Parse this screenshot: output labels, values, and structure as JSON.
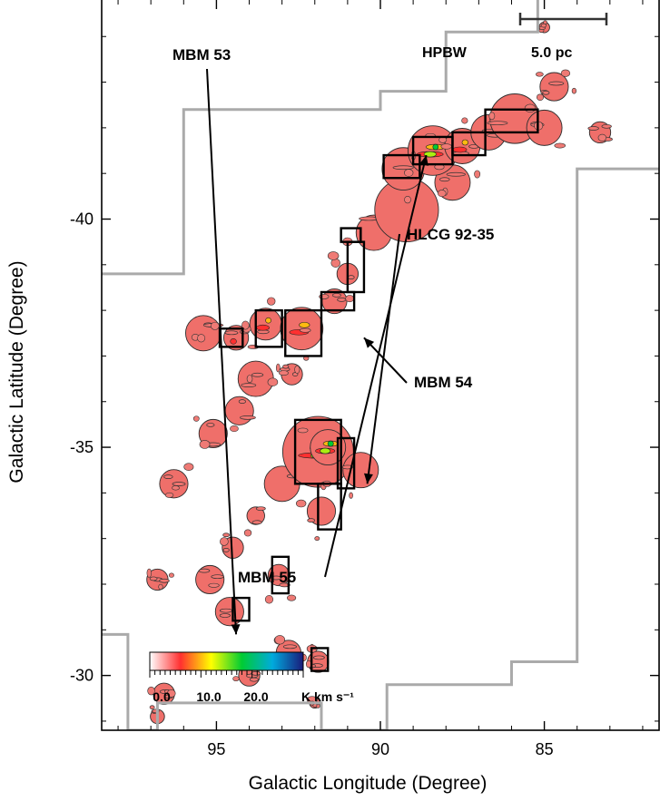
{
  "chart_data": {
    "type": "heatmap",
    "xlabel": "Galactic Longitude (Degree)",
    "ylabel": "Galactic Latitude (Degree)",
    "xlim": [
      98.5,
      81.5
    ],
    "ylim": [
      -44.8,
      -28.8
    ],
    "x_ticks": [
      95,
      90,
      85
    ],
    "x_tick_labels": [
      "95",
      "90",
      "85"
    ],
    "y_ticks": [
      -30,
      -35,
      -40
    ],
    "y_tick_labels": [
      "-30",
      "-35",
      "-40"
    ],
    "annotations": [
      {
        "text": "MBM 53",
        "target_l": 94.4,
        "target_b": -30.9
      },
      {
        "text": "HLCG 92-35",
        "target_l": 90.4,
        "target_b": -34.2
      },
      {
        "text": "MBM 54",
        "target_l": 90.5,
        "target_b": -37.4
      },
      {
        "text": "MBM 55",
        "target_l": 88.6,
        "target_b": -41.4
      }
    ],
    "hpbw_label": "HPBW",
    "scalebar_label": "5.0 pc",
    "colorbar": {
      "min": 0.0,
      "max": 30.0,
      "tick_labels": [
        "0.0",
        "10.0",
        "20.0"
      ],
      "tick_values": [
        0,
        10,
        20
      ],
      "unit": "K km s⁻¹",
      "colors": [
        "#ffffff",
        "#ff3030",
        "#ffff00",
        "#00cc33",
        "#00aadd",
        "#1a1a7a"
      ]
    },
    "survey_boundary": [
      [
        98.5,
        -30.9
      ],
      [
        97.7,
        -30.9
      ],
      [
        97.7,
        -28.8
      ],
      [
        96.8,
        -28.8
      ],
      [
        96.8,
        -29.4
      ],
      [
        91.8,
        -29.4
      ],
      [
        91.8,
        -28.8
      ],
      [
        89.8,
        -28.8
      ],
      [
        89.8,
        -29.8
      ],
      [
        86.0,
        -29.8
      ],
      [
        86.0,
        -30.3
      ],
      [
        84.0,
        -30.3
      ],
      [
        84.0,
        -41.1
      ],
      [
        81.5,
        -41.1
      ]
    ],
    "survey_boundary_2": [
      [
        98.5,
        -38.8
      ],
      [
        96.0,
        -38.8
      ],
      [
        96.0,
        -42.4
      ],
      [
        90.0,
        -42.4
      ],
      [
        90.0,
        -42.8
      ],
      [
        88.0,
        -42.8
      ],
      [
        88.0,
        -43.0
      ],
      [
        88.0,
        -44.1
      ],
      [
        85.2,
        -44.1
      ],
      [
        85.2,
        -44.8
      ]
    ],
    "emission_regions": [
      {
        "l": 96.8,
        "b": -29.1,
        "rl": 0.2,
        "rb": 0.3,
        "peak": 2
      },
      {
        "l": 96.6,
        "b": -29.6,
        "rl": 0.3,
        "rb": 0.15,
        "peak": 2
      },
      {
        "l": 94.0,
        "b": -30.0,
        "rl": 0.3,
        "rb": 0.15,
        "peak": 1
      },
      {
        "l": 92.8,
        "b": -30.5,
        "rl": 0.35,
        "rb": 0.2,
        "peak": 2
      },
      {
        "l": 91.9,
        "b": -30.3,
        "rl": 0.3,
        "rb": 0.25,
        "peak": 5
      },
      {
        "l": 92.0,
        "b": -29.4,
        "rl": 0.15,
        "rb": 0.1,
        "peak": 1
      },
      {
        "l": 94.6,
        "b": -31.4,
        "rl": 0.4,
        "rb": 0.4,
        "peak": 5
      },
      {
        "l": 95.2,
        "b": -32.1,
        "rl": 0.4,
        "rb": 0.3,
        "peak": 2
      },
      {
        "l": 96.8,
        "b": -32.1,
        "rl": 0.3,
        "rb": 0.15,
        "peak": 1
      },
      {
        "l": 93.1,
        "b": -32.2,
        "rl": 0.3,
        "rb": 0.35,
        "peak": 4
      },
      {
        "l": 94.5,
        "b": -32.8,
        "rl": 0.3,
        "rb": 0.35,
        "peak": 2
      },
      {
        "l": 93.8,
        "b": -33.5,
        "rl": 0.25,
        "rb": 0.25,
        "peak": 2
      },
      {
        "l": 93.0,
        "b": -34.2,
        "rl": 0.5,
        "rb": 0.4,
        "peak": 2
      },
      {
        "l": 91.8,
        "b": -33.6,
        "rl": 0.4,
        "rb": 0.5,
        "peak": 4
      },
      {
        "l": 91.9,
        "b": -34.9,
        "rl": 1.0,
        "rb": 0.9,
        "peak": 14
      },
      {
        "l": 91.6,
        "b": -35.0,
        "rl": 0.5,
        "rb": 0.6,
        "peak": 20
      },
      {
        "l": 90.6,
        "b": -34.5,
        "rl": 0.5,
        "rb": 0.35,
        "peak": 2
      },
      {
        "l": 96.3,
        "b": -34.2,
        "rl": 0.4,
        "rb": 0.25,
        "peak": 2
      },
      {
        "l": 95.1,
        "b": -35.3,
        "rl": 0.4,
        "rb": 0.3,
        "peak": 2
      },
      {
        "l": 94.3,
        "b": -35.8,
        "rl": 0.4,
        "rb": 0.3,
        "peak": 2
      },
      {
        "l": 93.8,
        "b": -36.5,
        "rl": 0.5,
        "rb": 0.3,
        "peak": 2
      },
      {
        "l": 92.7,
        "b": -36.6,
        "rl": 0.3,
        "rb": 0.25,
        "peak": 2
      },
      {
        "l": 95.4,
        "b": -37.5,
        "rl": 0.5,
        "rb": 0.3,
        "peak": 2
      },
      {
        "l": 94.4,
        "b": -37.4,
        "rl": 0.35,
        "rb": 0.3,
        "peak": 6
      },
      {
        "l": 93.5,
        "b": -37.7,
        "rl": 0.45,
        "rb": 0.4,
        "peak": 10
      },
      {
        "l": 92.4,
        "b": -37.6,
        "rl": 0.6,
        "rb": 0.6,
        "peak": 12
      },
      {
        "l": 91.4,
        "b": -38.2,
        "rl": 0.35,
        "rb": 0.35,
        "peak": 4
      },
      {
        "l": 91.0,
        "b": -38.8,
        "rl": 0.3,
        "rb": 0.6,
        "peak": 5
      },
      {
        "l": 90.2,
        "b": -39.7,
        "rl": 0.5,
        "rb": 0.4,
        "peak": 2
      },
      {
        "l": 89.2,
        "b": -40.2,
        "rl": 0.9,
        "rb": 0.35,
        "peak": 2
      },
      {
        "l": 87.8,
        "b": -40.8,
        "rl": 0.5,
        "rb": 0.3,
        "peak": 2
      },
      {
        "l": 89.3,
        "b": -41.1,
        "rl": 0.6,
        "rb": 0.3,
        "peak": 5
      },
      {
        "l": 88.4,
        "b": -41.5,
        "rl": 0.7,
        "rb": 0.35,
        "peak": 18
      },
      {
        "l": 87.5,
        "b": -41.6,
        "rl": 0.5,
        "rb": 0.3,
        "peak": 10
      },
      {
        "l": 86.7,
        "b": -41.9,
        "rl": 0.5,
        "rb": 0.3,
        "peak": 3
      },
      {
        "l": 85.9,
        "b": -42.2,
        "rl": 0.7,
        "rb": 0.3,
        "peak": 2
      },
      {
        "l": 85.0,
        "b": -42.0,
        "rl": 0.5,
        "rb": 0.25,
        "peak": 2
      },
      {
        "l": 83.3,
        "b": -41.9,
        "rl": 0.3,
        "rb": 0.2,
        "peak": 1
      },
      {
        "l": 84.7,
        "b": -42.9,
        "rl": 0.4,
        "rb": 0.2,
        "peak": 1
      },
      {
        "l": 85.0,
        "b": -44.2,
        "rl": 0.15,
        "rb": 0.15,
        "peak": 2
      }
    ],
    "outlined_regions": [
      {
        "l0": 94.5,
        "l1": 94.0,
        "b0": -31.2,
        "b1": -31.7
      },
      {
        "l0": 92.1,
        "l1": 91.6,
        "b0": -30.1,
        "b1": -30.6
      },
      {
        "l0": 93.3,
        "l1": 92.8,
        "b0": -31.8,
        "b1": -32.6
      },
      {
        "l0": 91.9,
        "l1": 91.2,
        "b0": -33.2,
        "b1": -34.2
      },
      {
        "l0": 92.6,
        "l1": 91.2,
        "b0": -34.2,
        "b1": -35.6
      },
      {
        "l0": 91.3,
        "l1": 90.8,
        "b0": -34.1,
        "b1": -35.2
      },
      {
        "l0": 94.9,
        "l1": 94.2,
        "b0": -37.2,
        "b1": -37.6
      },
      {
        "l0": 93.8,
        "l1": 93.0,
        "b0": -37.2,
        "b1": -38.0
      },
      {
        "l0": 92.9,
        "l1": 91.8,
        "b0": -37.0,
        "b1": -38.0
      },
      {
        "l0": 91.8,
        "l1": 90.8,
        "b0": -38.0,
        "b1": -38.4
      },
      {
        "l0": 91.0,
        "l1": 90.5,
        "b0": -38.4,
        "b1": -39.5
      },
      {
        "l0": 91.2,
        "l1": 90.6,
        "b0": -39.5,
        "b1": -39.8
      },
      {
        "l0": 89.9,
        "l1": 88.8,
        "b0": -40.9,
        "b1": -41.4
      },
      {
        "l0": 89.0,
        "l1": 87.8,
        "b0": -41.2,
        "b1": -41.8
      },
      {
        "l0": 87.8,
        "l1": 86.8,
        "b0": -41.4,
        "b1": -41.9
      },
      {
        "l0": 86.8,
        "l1": 85.2,
        "b0": -41.9,
        "b1": -42.4
      }
    ]
  }
}
